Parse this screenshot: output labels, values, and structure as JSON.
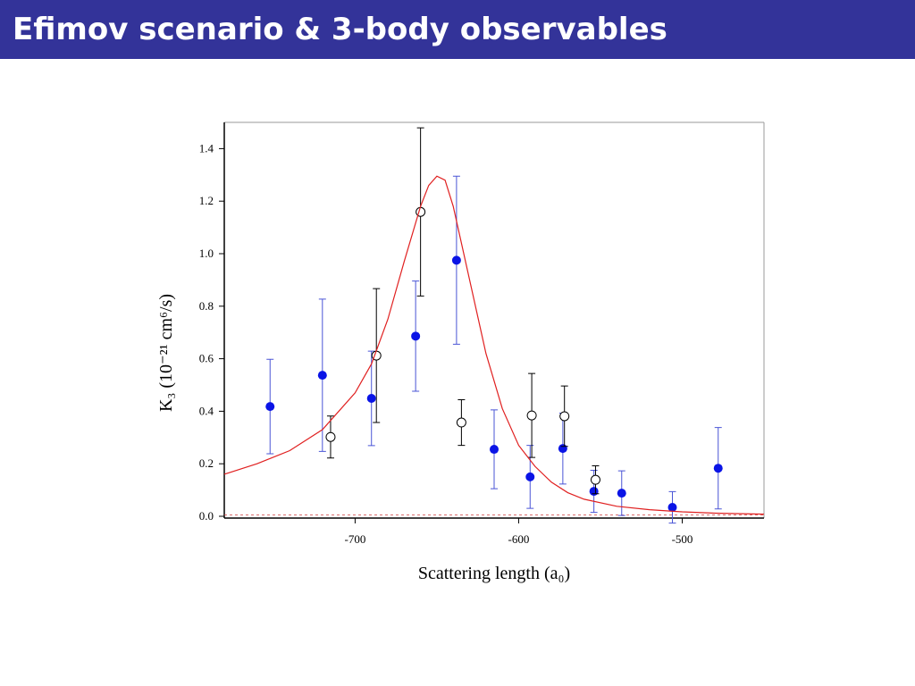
{
  "header": {
    "title": "Efimov scenario & 3-body observables"
  },
  "chart_data": {
    "type": "scatter",
    "xlabel": "Scattering length (a₀)",
    "ylabel": "K₃ (10⁻²¹ cm⁶/s)",
    "xlim": [
      -780,
      -450
    ],
    "ylim": [
      0,
      1.5
    ],
    "xticks": [
      -700,
      -600,
      -500
    ],
    "yticks": [
      {
        "value": 0,
        "label": "0.0"
      },
      0.2,
      0.4,
      0.6,
      0.8,
      {
        "value": 1,
        "label": "1.0"
      },
      1.2,
      1.4
    ],
    "series": [
      {
        "type": "scatter",
        "marker": "filled",
        "color": "#0a14e6",
        "error_color": "#4a55d6",
        "x": [
          -752,
          -720,
          -690,
          -663,
          -638,
          -615,
          -593,
          -573,
          -554,
          -537,
          -506,
          -478
        ],
        "values": [
          0.418,
          0.537,
          0.449,
          0.686,
          0.975,
          0.255,
          0.15,
          0.258,
          0.095,
          0.088,
          0.034,
          0.183
        ],
        "errors": [
          0.18,
          0.29,
          0.18,
          0.21,
          0.32,
          0.15,
          0.12,
          0.135,
          0.08,
          0.085,
          0.06,
          0.155
        ]
      },
      {
        "type": "scatter",
        "marker": "open",
        "color": "#000000",
        "error_color": "#000000",
        "x": [
          -715,
          -687,
          -660,
          -635,
          -592,
          -572,
          -553
        ],
        "values": [
          0.302,
          0.612,
          1.159,
          0.357,
          0.384,
          0.381,
          0.139
        ],
        "errors": [
          0.08,
          0.255,
          0.32,
          0.087,
          0.16,
          0.115,
          0.053
        ]
      },
      {
        "type": "line",
        "color": "#e02020",
        "x": [
          -780,
          -760,
          -740,
          -720,
          -700,
          -690,
          -680,
          -670,
          -660,
          -655,
          -650,
          -645,
          -640,
          -630,
          -620,
          -610,
          -600,
          -590,
          -580,
          -570,
          -560,
          -540,
          -520,
          -500,
          -480,
          -450
        ],
        "values": [
          0.16,
          0.2,
          0.25,
          0.33,
          0.47,
          0.58,
          0.75,
          0.97,
          1.18,
          1.26,
          1.295,
          1.28,
          1.18,
          0.9,
          0.62,
          0.41,
          0.27,
          0.19,
          0.13,
          0.09,
          0.065,
          0.038,
          0.025,
          0.017,
          0.012,
          0.008
        ]
      }
    ],
    "reference_line": {
      "value": 0.005,
      "color": "#d04040"
    }
  }
}
